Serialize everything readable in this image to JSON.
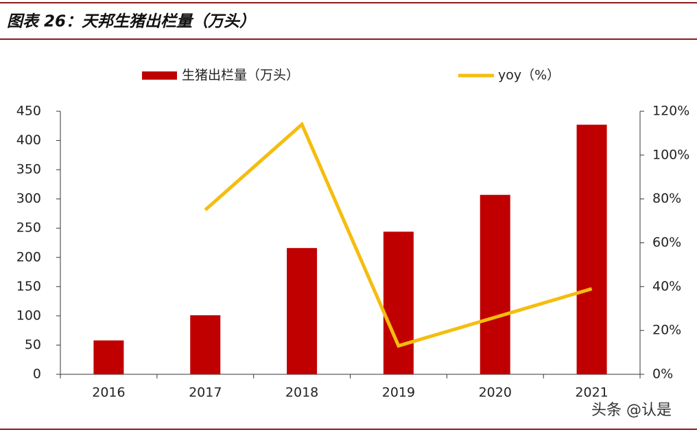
{
  "chart_data": {
    "type": "bar_line",
    "title": "图表 26：天邦生猪出栏量（万头）",
    "categories": [
      "2016",
      "2017",
      "2018",
      "2019",
      "2020",
      "2021"
    ],
    "series": [
      {
        "name": "生猪出栏量（万头）",
        "color": "#c00000",
        "type": "bar",
        "values": [
          58,
          101,
          216,
          244,
          307,
          427
        ]
      },
      {
        "name": "yoy（%）",
        "color": "#f5bd0f",
        "type": "line",
        "axis": "y2",
        "values": [
          null,
          75,
          114,
          13,
          26,
          39
        ]
      }
    ],
    "ylim": [
      0,
      450
    ],
    "yticks": [
      0,
      50,
      100,
      150,
      200,
      250,
      300,
      350,
      400,
      450
    ],
    "y2lim": [
      0,
      120
    ],
    "y2ticks": [
      {
        "value": 0,
        "label": "0%"
      },
      {
        "value": 20,
        "label": "20%"
      },
      {
        "value": 40,
        "label": "40%"
      },
      {
        "value": 60,
        "label": "60%"
      },
      {
        "value": 80,
        "label": "80%"
      },
      {
        "value": 100,
        "label": "100%"
      },
      {
        "value": 120,
        "label": "120%"
      }
    ],
    "legend": "top"
  },
  "watermark": "头条 @认是"
}
